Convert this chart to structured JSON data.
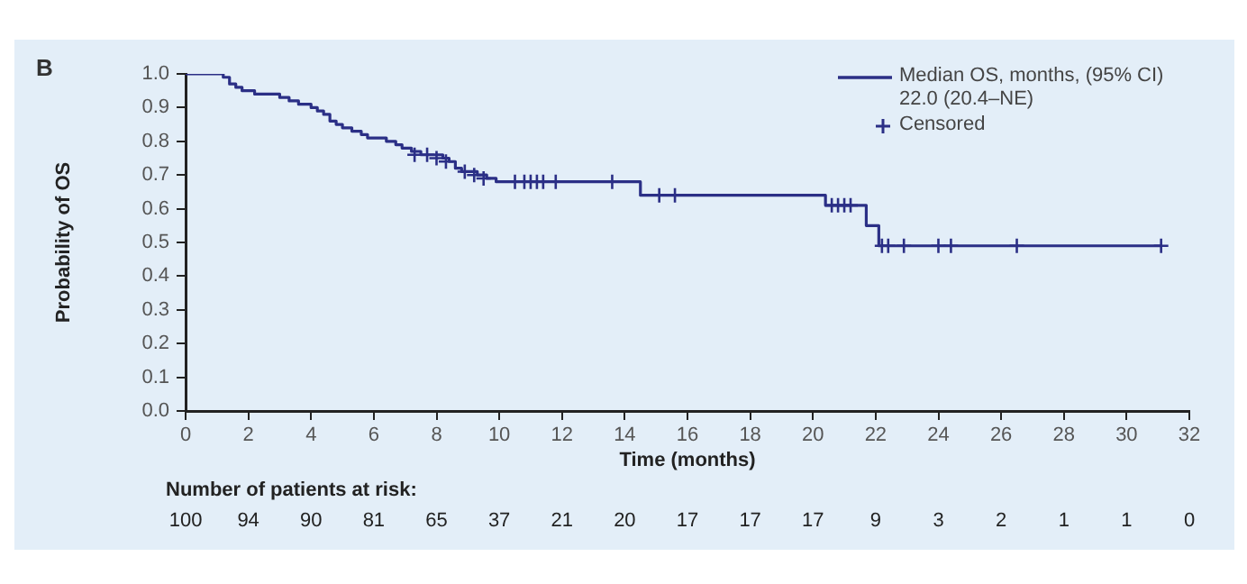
{
  "chart_data": {
    "type": "step",
    "title": "B",
    "xlabel": "Time (months)",
    "ylabel": "Probability of OS",
    "xlim": [
      0,
      32
    ],
    "xticks": [
      0,
      2,
      4,
      6,
      8,
      10,
      12,
      14,
      16,
      18,
      20,
      22,
      24,
      26,
      28,
      30,
      32
    ],
    "ylim": [
      0,
      1
    ],
    "yticks": [
      {
        "value": 0,
        "label": "0.0"
      },
      0.1,
      0.2,
      0.3,
      0.4,
      0.5,
      0.6,
      0.7,
      0.8,
      0.9,
      {
        "value": 1,
        "label": "1.0"
      }
    ],
    "grid": false,
    "legend": "top right",
    "series": [
      {
        "name": "Median OS, months, (95% CI) 22.0 (20.4–NE)",
        "color": "#2b2f86",
        "marker": "none",
        "x": [
          0,
          1.2,
          1.4,
          1.6,
          1.8,
          2.2,
          3.0,
          3.3,
          3.6,
          4.0,
          4.2,
          4.4,
          4.6,
          4.8,
          5.0,
          5.3,
          5.6,
          5.8,
          6.4,
          6.7,
          6.9,
          7.2,
          7.5,
          8.2,
          8.4,
          8.6,
          8.8,
          9.3,
          9.6,
          9.9,
          14.5,
          20.4,
          21.7,
          22.1,
          31.1
        ],
        "values": [
          1.0,
          0.99,
          0.97,
          0.96,
          0.95,
          0.94,
          0.93,
          0.92,
          0.91,
          0.9,
          0.89,
          0.88,
          0.86,
          0.85,
          0.84,
          0.83,
          0.82,
          0.81,
          0.8,
          0.79,
          0.78,
          0.77,
          0.76,
          0.75,
          0.74,
          0.72,
          0.71,
          0.7,
          0.69,
          0.68,
          0.64,
          0.61,
          0.55,
          0.49,
          0.49
        ]
      },
      {
        "name": "Censored",
        "type": "scatter",
        "color": "#2b2f86",
        "marker": "cross",
        "x": [
          7.3,
          7.7,
          8.0,
          8.3,
          8.9,
          9.2,
          9.5,
          10.5,
          10.8,
          11.0,
          11.2,
          11.4,
          11.8,
          13.6,
          15.1,
          15.6,
          20.6,
          20.8,
          21.0,
          21.2,
          22.2,
          22.4,
          22.9,
          24.0,
          24.4,
          26.5,
          31.1
        ],
        "values": [
          0.76,
          0.76,
          0.75,
          0.74,
          0.71,
          0.7,
          0.69,
          0.68,
          0.68,
          0.68,
          0.68,
          0.68,
          0.68,
          0.68,
          0.64,
          0.64,
          0.61,
          0.61,
          0.61,
          0.61,
          0.49,
          0.49,
          0.49,
          0.49,
          0.49,
          0.49,
          0.49
        ]
      }
    ],
    "annotations": [
      "Number of patients at risk:",
      "100",
      "94",
      "90",
      "81",
      "65",
      "37",
      "21",
      "20",
      "17",
      "17",
      "17",
      "9",
      "3",
      "2",
      "1",
      "1",
      "0"
    ]
  }
}
